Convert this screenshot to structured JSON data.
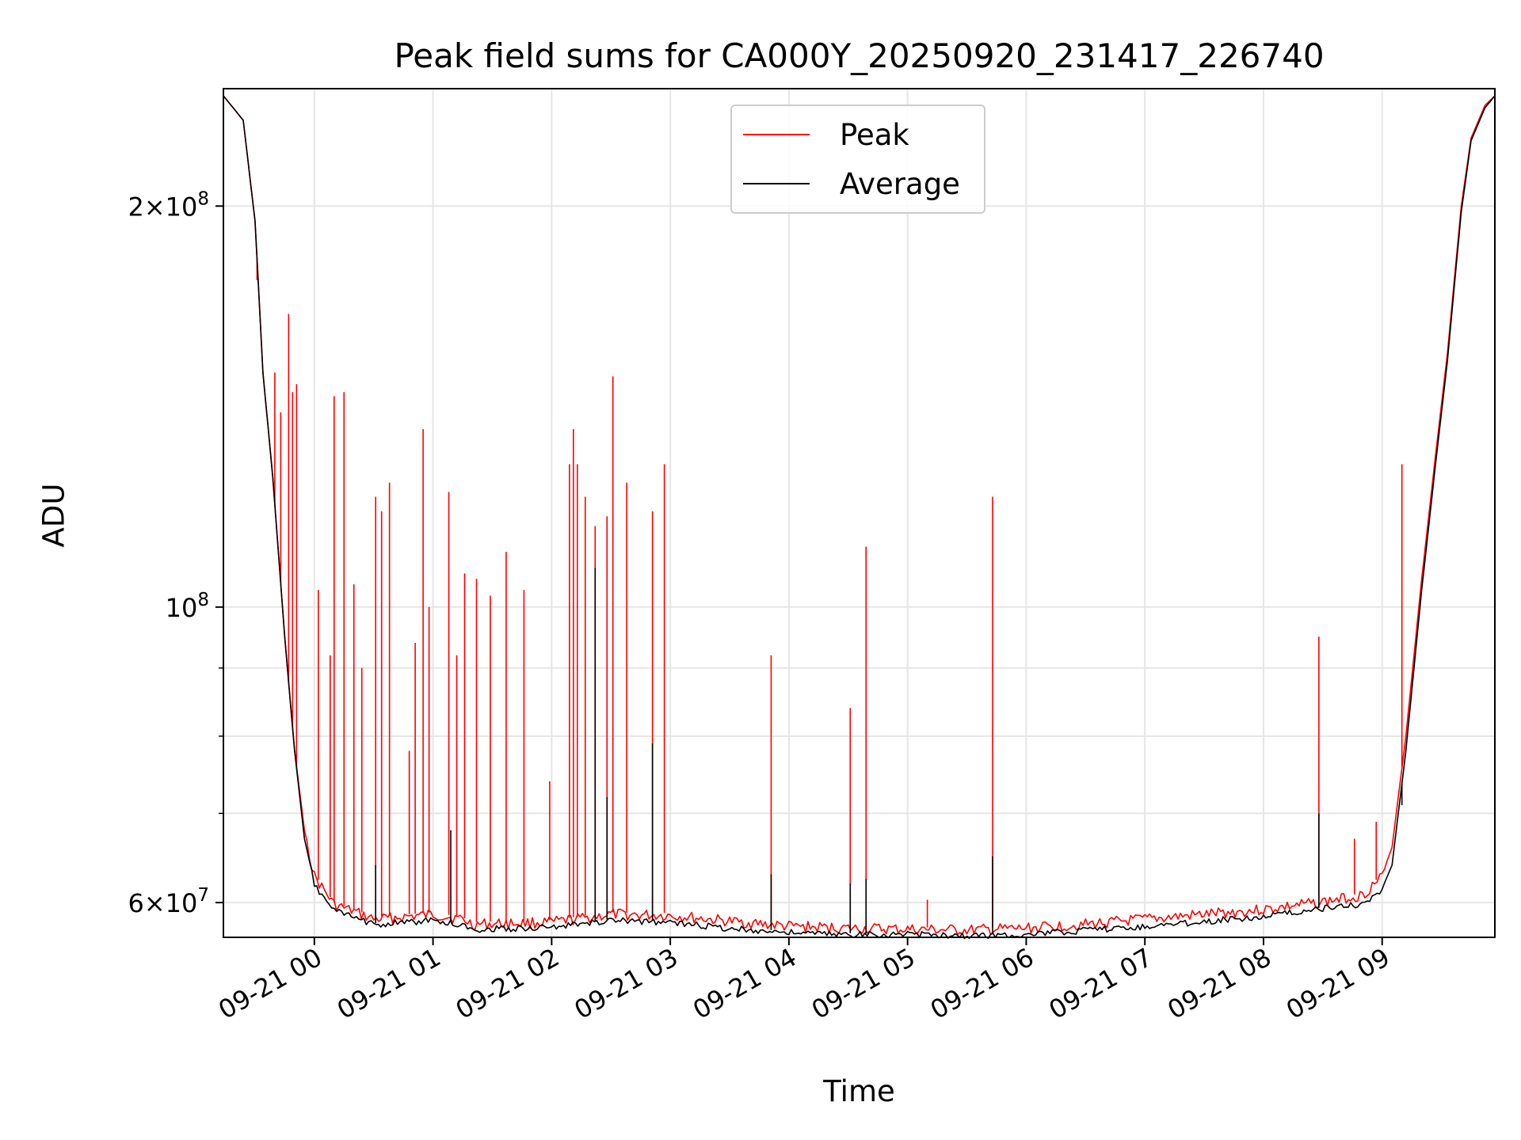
{
  "chart_data": {
    "type": "line",
    "title": "Peak field sums for CA000Y_20250920_231417_226740",
    "xlabel": "Time",
    "ylabel": "ADU",
    "yscale": "log",
    "ylim": [
      56500000,
      245000000
    ],
    "xlim": [
      "2025-09-20 23:14",
      "2025-09-21 09:57"
    ],
    "grid": true,
    "legend": "upper center",
    "x_ticks": [
      "09-21 00",
      "09-21 01",
      "09-21 02",
      "09-21 03",
      "09-21 04",
      "09-21 05",
      "09-21 06",
      "09-21 07",
      "09-21 08",
      "09-21 09"
    ],
    "x_tick_times": [
      "2025-09-21 00:00",
      "2025-09-21 01:00",
      "2025-09-21 02:00",
      "2025-09-21 03:00",
      "2025-09-21 04:00",
      "2025-09-21 05:00",
      "2025-09-21 06:00",
      "2025-09-21 07:00",
      "2025-09-21 08:00",
      "2025-09-21 09:00"
    ],
    "y_major_ticks": [
      {
        "value": 60000000,
        "mantissa": "6",
        "exp": "7"
      },
      {
        "value": 100000000,
        "mantissa": "",
        "exp": "8"
      },
      {
        "value": 200000000,
        "mantissa": "2",
        "exp": "8"
      }
    ],
    "y_minor_ticks": [
      70000000,
      80000000,
      90000000
    ],
    "colors": {
      "peak": "#ff0000",
      "average": "#000000",
      "grid": "#e6e6e6"
    },
    "series": [
      {
        "name": "Peak",
        "color": "#ff0000",
        "points": [
          [
            "2025-09-20 23:14",
            242000000
          ],
          [
            "2025-09-20 23:24",
            232000000
          ],
          [
            "2025-09-20 23:30",
            195000000
          ],
          [
            "2025-09-20 23:34",
            150000000
          ],
          [
            "2025-09-20 23:39",
            125000000
          ],
          [
            "2025-09-20 23:45",
            95000000
          ],
          [
            "2025-09-20 23:50",
            78000000
          ],
          [
            "2025-09-20 23:55",
            68000000
          ],
          [
            "2025-09-21 00:00",
            63000000
          ],
          [
            "2025-09-21 00:10",
            60000000
          ],
          [
            "2025-09-21 00:20",
            59300000
          ],
          [
            "2025-09-21 00:30",
            58500000
          ],
          [
            "2025-09-21 01:00",
            59000000
          ],
          [
            "2025-09-21 01:15",
            58500000
          ],
          [
            "2025-09-21 01:20",
            58000000
          ],
          [
            "2025-09-21 02:00",
            58200000
          ],
          [
            "2025-09-21 02:30",
            59000000
          ],
          [
            "2025-09-21 03:00",
            58900000
          ],
          [
            "2025-09-21 03:30",
            58300000
          ],
          [
            "2025-09-21 04:00",
            57800000
          ],
          [
            "2025-09-21 04:30",
            57600000
          ],
          [
            "2025-09-21 05:00",
            57500000
          ],
          [
            "2025-09-21 05:30",
            57400000
          ],
          [
            "2025-09-21 06:00",
            57600000
          ],
          [
            "2025-09-21 06:30",
            58000000
          ],
          [
            "2025-09-21 07:00",
            58500000
          ],
          [
            "2025-09-21 07:30",
            59000000
          ],
          [
            "2025-09-21 08:00",
            59500000
          ],
          [
            "2025-09-21 08:30",
            60300000
          ],
          [
            "2025-09-21 08:50",
            61000000
          ],
          [
            "2025-09-21 09:00",
            63000000
          ],
          [
            "2025-09-21 09:05",
            66000000
          ],
          [
            "2025-09-21 09:12",
            80000000
          ],
          [
            "2025-09-21 09:20",
            105000000
          ],
          [
            "2025-09-21 09:27",
            130000000
          ],
          [
            "2025-09-21 09:33",
            155000000
          ],
          [
            "2025-09-21 09:40",
            200000000
          ],
          [
            "2025-09-21 09:45",
            225000000
          ],
          [
            "2025-09-21 09:52",
            238000000
          ],
          [
            "2025-09-21 09:57",
            242000000
          ]
        ],
        "spikes": [
          [
            "2025-09-20 23:31",
            176000000
          ],
          [
            "2025-09-20 23:40",
            150000000
          ],
          [
            "2025-09-20 23:43",
            140000000
          ],
          [
            "2025-09-20 23:47",
            166000000
          ],
          [
            "2025-09-20 23:49",
            145000000
          ],
          [
            "2025-09-20 23:51",
            147000000
          ],
          [
            "2025-09-21 00:02",
            103000000
          ],
          [
            "2025-09-21 00:08",
            92000000
          ],
          [
            "2025-09-21 00:10",
            144000000
          ],
          [
            "2025-09-21 00:15",
            145000000
          ],
          [
            "2025-09-21 00:20",
            104000000
          ],
          [
            "2025-09-21 00:24",
            90000000
          ],
          [
            "2025-09-21 00:31",
            121000000
          ],
          [
            "2025-09-21 00:34",
            118000000
          ],
          [
            "2025-09-21 00:38",
            124000000
          ],
          [
            "2025-09-21 00:48",
            78000000
          ],
          [
            "2025-09-21 00:51",
            94000000
          ],
          [
            "2025-09-21 00:55",
            136000000
          ],
          [
            "2025-09-21 00:58",
            100000000
          ],
          [
            "2025-09-21 01:08",
            122000000
          ],
          [
            "2025-09-21 01:12",
            92000000
          ],
          [
            "2025-09-21 01:16",
            106000000
          ],
          [
            "2025-09-21 01:22",
            105000000
          ],
          [
            "2025-09-21 01:29",
            102000000
          ],
          [
            "2025-09-21 01:37",
            110000000
          ],
          [
            "2025-09-21 01:46",
            103000000
          ],
          [
            "2025-09-21 01:59",
            74000000
          ],
          [
            "2025-09-21 02:09",
            128000000
          ],
          [
            "2025-09-21 02:11",
            136000000
          ],
          [
            "2025-09-21 02:13",
            128000000
          ],
          [
            "2025-09-21 02:17",
            121000000
          ],
          [
            "2025-09-21 02:22",
            115000000
          ],
          [
            "2025-09-21 02:28",
            117000000
          ],
          [
            "2025-09-21 02:31",
            149000000
          ],
          [
            "2025-09-21 02:38",
            124000000
          ],
          [
            "2025-09-21 02:51",
            118000000
          ],
          [
            "2025-09-21 02:57",
            128000000
          ],
          [
            "2025-09-21 03:51",
            92000000
          ],
          [
            "2025-09-21 04:31",
            84000000
          ],
          [
            "2025-09-21 04:39",
            111000000
          ],
          [
            "2025-09-21 05:10",
            60300000
          ],
          [
            "2025-09-21 05:43",
            121000000
          ],
          [
            "2025-09-21 08:28",
            95000000
          ],
          [
            "2025-09-21 08:46",
            67000000
          ],
          [
            "2025-09-21 08:57",
            69000000
          ],
          [
            "2025-09-21 09:10",
            128000000
          ]
        ]
      },
      {
        "name": "Average",
        "color": "#000000",
        "points": [
          [
            "2025-09-20 23:14",
            242000000
          ],
          [
            "2025-09-20 23:24",
            232000000
          ],
          [
            "2025-09-20 23:30",
            195000000
          ],
          [
            "2025-09-20 23:34",
            150000000
          ],
          [
            "2025-09-20 23:39",
            125000000
          ],
          [
            "2025-09-20 23:45",
            95000000
          ],
          [
            "2025-09-20 23:50",
            78000000
          ],
          [
            "2025-09-20 23:55",
            67000000
          ],
          [
            "2025-09-21 00:00",
            62000000
          ],
          [
            "2025-09-21 00:10",
            59300000
          ],
          [
            "2025-09-21 00:20",
            58600000
          ],
          [
            "2025-09-21 00:30",
            57900000
          ],
          [
            "2025-09-21 01:00",
            58300000
          ],
          [
            "2025-09-21 01:15",
            57800000
          ],
          [
            "2025-09-21 01:20",
            57400000
          ],
          [
            "2025-09-21 02:00",
            57600000
          ],
          [
            "2025-09-21 02:30",
            58300000
          ],
          [
            "2025-09-21 03:00",
            58100000
          ],
          [
            "2025-09-21 03:30",
            57500000
          ],
          [
            "2025-09-21 04:00",
            57100000
          ],
          [
            "2025-09-21 04:30",
            56900000
          ],
          [
            "2025-09-21 05:00",
            56900000
          ],
          [
            "2025-09-21 05:30",
            56800000
          ],
          [
            "2025-09-21 06:00",
            56900000
          ],
          [
            "2025-09-21 06:30",
            57300000
          ],
          [
            "2025-09-21 07:00",
            57700000
          ],
          [
            "2025-09-21 07:30",
            58200000
          ],
          [
            "2025-09-21 08:00",
            58700000
          ],
          [
            "2025-09-21 08:30",
            59500000
          ],
          [
            "2025-09-21 08:50",
            60000000
          ],
          [
            "2025-09-21 09:00",
            61500000
          ],
          [
            "2025-09-21 09:05",
            64000000
          ],
          [
            "2025-09-21 09:12",
            78000000
          ],
          [
            "2025-09-21 09:20",
            103000000
          ],
          [
            "2025-09-21 09:27",
            128000000
          ],
          [
            "2025-09-21 09:33",
            153000000
          ],
          [
            "2025-09-21 09:40",
            198000000
          ],
          [
            "2025-09-21 09:45",
            224000000
          ],
          [
            "2025-09-21 09:52",
            237000000
          ],
          [
            "2025-09-21 09:57",
            242000000
          ]
        ],
        "spikes": [
          [
            "2025-09-21 00:31",
            64000000
          ],
          [
            "2025-09-21 01:09",
            68000000
          ],
          [
            "2025-09-21 02:22",
            107000000
          ],
          [
            "2025-09-21 02:28",
            72000000
          ],
          [
            "2025-09-21 02:51",
            79000000
          ],
          [
            "2025-09-21 03:51",
            63000000
          ],
          [
            "2025-09-21 04:31",
            62000000
          ],
          [
            "2025-09-21 04:39",
            62500000
          ],
          [
            "2025-09-21 05:43",
            65000000
          ],
          [
            "2025-09-21 08:28",
            70000000
          ],
          [
            "2025-09-21 09:10",
            71000000
          ]
        ]
      }
    ]
  }
}
